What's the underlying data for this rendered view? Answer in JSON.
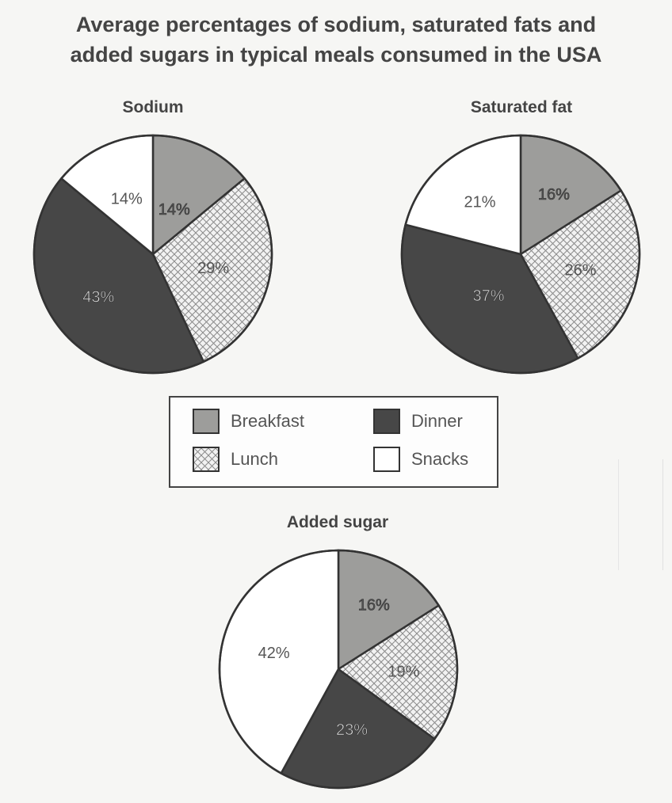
{
  "title_line1": "Average percentages of sodium, saturated fats and",
  "title_line2": "added sugars in typical meals consumed in the USA",
  "legend": {
    "breakfast": "Breakfast",
    "lunch": "Lunch",
    "dinner": "Dinner",
    "snacks": "Snacks"
  },
  "colors": {
    "breakfast": "#9d9d9b",
    "lunch": "#f2f2f2",
    "lunch_hatch": "#8a8a8a",
    "dinner": "#474747",
    "snacks": "#ffffff",
    "outline": "#333333"
  },
  "chart_data": [
    {
      "type": "pie",
      "title": "Sodium",
      "categories": [
        "Breakfast",
        "Lunch",
        "Dinner",
        "Snacks"
      ],
      "values": [
        14,
        29,
        43,
        14
      ],
      "labels": [
        "14%",
        "29%",
        "43%",
        "14%"
      ]
    },
    {
      "type": "pie",
      "title": "Saturated fat",
      "categories": [
        "Breakfast",
        "Lunch",
        "Dinner",
        "Snacks"
      ],
      "values": [
        16,
        26,
        37,
        21
      ],
      "labels": [
        "16%",
        "26%",
        "37%",
        "21%"
      ]
    },
    {
      "type": "pie",
      "title": "Added sugar",
      "categories": [
        "Breakfast",
        "Lunch",
        "Dinner",
        "Snacks"
      ],
      "values": [
        16,
        19,
        23,
        42
      ],
      "labels": [
        "16%",
        "19%",
        "23%",
        "42%"
      ]
    }
  ]
}
